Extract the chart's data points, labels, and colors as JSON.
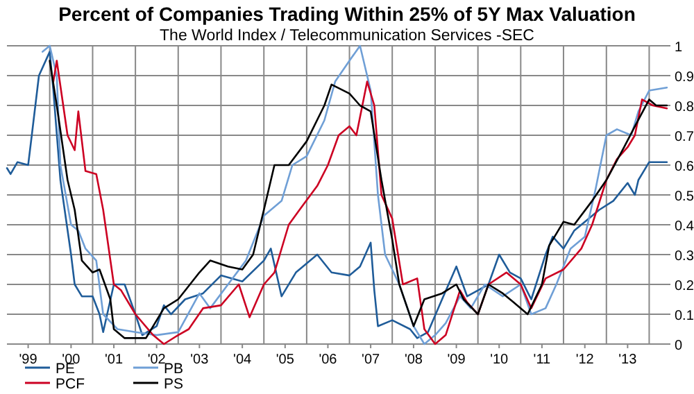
{
  "chart_data": {
    "type": "line",
    "title": "Percent of Companies Trading Within 25%  of 5Y Max Valuation",
    "subtitle": "The World Index / Telecommunication Services -SEC",
    "xlim": [
      "1999-01",
      "2014-07"
    ],
    "xticks": [
      {
        "value": "1999-07",
        "label": "'99"
      },
      {
        "value": "2000-07",
        "label": "'00"
      },
      {
        "value": "2001-07",
        "label": "'01"
      },
      {
        "value": "2002-07",
        "label": "'02"
      },
      {
        "value": "2003-07",
        "label": "'03"
      },
      {
        "value": "2004-07",
        "label": "'04"
      },
      {
        "value": "2005-07",
        "label": "'05"
      },
      {
        "value": "2006-07",
        "label": "'06"
      },
      {
        "value": "2007-07",
        "label": "'07"
      },
      {
        "value": "2008-07",
        "label": "'08"
      },
      {
        "value": "2009-07",
        "label": "'09"
      },
      {
        "value": "2010-07",
        "label": "'10"
      },
      {
        "value": "2011-07",
        "label": "'11"
      },
      {
        "value": "2012-07",
        "label": "'12"
      },
      {
        "value": "2013-07",
        "label": "'13"
      },
      {
        "value": "2000",
        "label": null
      },
      {
        "value": "2001",
        "label": null
      },
      {
        "value": "2002",
        "label": null
      },
      {
        "value": "2003",
        "label": null
      },
      {
        "value": "2004",
        "label": null
      },
      {
        "value": "2005",
        "label": null
      },
      {
        "value": "2006",
        "label": null
      },
      {
        "value": "2007",
        "label": null
      },
      {
        "value": "2008",
        "label": null
      },
      {
        "value": "2009",
        "label": null
      },
      {
        "value": "2010",
        "label": null
      },
      {
        "value": "2011",
        "label": null
      },
      {
        "value": "2012",
        "label": null
      },
      {
        "value": "2013",
        "label": null
      },
      {
        "value": "2014",
        "label": null
      }
    ],
    "ylim": [
      0,
      1
    ],
    "yticks": [
      0,
      0.1,
      0.2,
      0.3,
      0.4,
      0.5,
      0.6,
      0.7,
      0.8,
      0.9,
      1
    ],
    "grid": true,
    "legend": "bottom left",
    "line_style": "solid",
    "marker": "none",
    "series": [
      {
        "name": "PE",
        "color": "#1f5c99",
        "x": [
          "1999-01",
          "1999-02",
          "1999-04",
          "1999-07",
          "1999-08",
          "1999-10",
          "2000-01",
          "2000-02",
          "2000-04",
          "2000-07",
          "2000-08",
          "2000-10",
          "2001-01",
          "2001-03",
          "2001-04",
          "2001-07",
          "2001-10",
          "2002-01",
          "2002-03",
          "2002-07",
          "2002-09",
          "2002-11",
          "2003-03",
          "2003-08",
          "2004-01",
          "2004-07",
          "2005-01",
          "2005-03",
          "2005-06",
          "2005-10",
          "2006-04",
          "2006-08",
          "2007-01",
          "2007-04",
          "2007-07",
          "2007-08",
          "2007-09",
          "2008-01",
          "2008-06",
          "2008-08",
          "2008-11",
          "2009-03",
          "2009-07",
          "2009-10",
          "2010-01",
          "2010-04",
          "2010-07",
          "2010-10",
          "2011-01",
          "2011-04",
          "2011-08",
          "2011-10",
          "2012-01",
          "2012-04",
          "2012-08",
          "2012-11",
          "2013-03",
          "2013-07",
          "2013-09",
          "2013-10",
          "2014-01",
          "2014-06"
        ],
        "values": [
          0.59,
          0.57,
          0.61,
          0.6,
          0.7,
          0.9,
          0.98,
          0.85,
          0.55,
          0.3,
          0.2,
          0.16,
          0.16,
          0.1,
          0.04,
          0.2,
          0.2,
          0.1,
          0.03,
          0.06,
          0.13,
          0.1,
          0.15,
          0.17,
          0.23,
          0.21,
          0.28,
          0.32,
          0.16,
          0.24,
          0.3,
          0.24,
          0.23,
          0.26,
          0.34,
          0.18,
          0.06,
          0.08,
          0.05,
          0.02,
          0.04,
          0.15,
          0.26,
          0.16,
          0.18,
          0.2,
          0.3,
          0.24,
          0.22,
          0.15,
          0.3,
          0.36,
          0.32,
          0.38,
          0.42,
          0.45,
          0.48,
          0.54,
          0.5,
          0.55,
          0.61,
          0.61
        ]
      },
      {
        "name": "PB",
        "color": "#6f9fd6",
        "x": [
          "1999-11",
          "2000-01",
          "2000-03",
          "2000-04",
          "2000-07",
          "2000-09",
          "2000-11",
          "2001-02",
          "2001-04",
          "2001-08",
          "2002-01",
          "2002-07",
          "2003-01",
          "2003-07",
          "2003-10",
          "2004-03",
          "2004-08",
          "2005-01",
          "2005-06",
          "2005-09",
          "2006-01",
          "2006-06",
          "2006-09",
          "2007-01",
          "2007-04",
          "2007-07",
          "2007-09",
          "2007-11",
          "2008-03",
          "2008-07",
          "2008-10",
          "2009-01",
          "2009-04",
          "2009-08",
          "2009-11",
          "2010-03",
          "2010-08",
          "2011-01",
          "2011-04",
          "2011-08",
          "2011-11",
          "2012-03",
          "2012-07",
          "2012-10",
          "2013-01",
          "2013-04",
          "2013-08",
          "2013-10",
          "2014-01",
          "2014-06"
        ],
        "values": [
          0.98,
          1.0,
          0.9,
          0.6,
          0.4,
          0.38,
          0.32,
          0.28,
          0.1,
          0.05,
          0.04,
          0.03,
          0.04,
          0.17,
          0.12,
          0.2,
          0.28,
          0.43,
          0.48,
          0.6,
          0.63,
          0.75,
          0.88,
          0.95,
          1.0,
          0.85,
          0.5,
          0.3,
          0.2,
          0.06,
          0.0,
          0.03,
          0.07,
          0.16,
          0.12,
          0.2,
          0.16,
          0.2,
          0.1,
          0.12,
          0.2,
          0.32,
          0.36,
          0.52,
          0.7,
          0.72,
          0.7,
          0.78,
          0.85,
          0.86
        ]
      },
      {
        "name": "PCF",
        "color": "#cc0022",
        "x": [
          "2000-02",
          "2000-03",
          "2000-06",
          "2000-08",
          "2000-09",
          "2000-11",
          "2001-02",
          "2001-04",
          "2001-07",
          "2001-09",
          "2002-01",
          "2002-06",
          "2002-09",
          "2003-01",
          "2003-04",
          "2003-08",
          "2004-01",
          "2004-06",
          "2004-09",
          "2005-01",
          "2005-04",
          "2005-08",
          "2005-11",
          "2006-04",
          "2006-07",
          "2006-10",
          "2007-01",
          "2007-03",
          "2007-06",
          "2007-08",
          "2007-10",
          "2008-01",
          "2008-04",
          "2008-08",
          "2008-10",
          "2009-01",
          "2009-04",
          "2009-08",
          "2009-10",
          "2010-01",
          "2010-04",
          "2010-09",
          "2011-01",
          "2011-04",
          "2011-08",
          "2012-01",
          "2012-06",
          "2012-09",
          "2013-01",
          "2013-04",
          "2013-07",
          "2013-09",
          "2013-11",
          "2014-02",
          "2014-06"
        ],
        "values": [
          0.88,
          0.95,
          0.7,
          0.65,
          0.78,
          0.58,
          0.57,
          0.45,
          0.2,
          0.18,
          0.1,
          0.03,
          0.0,
          0.03,
          0.05,
          0.12,
          0.13,
          0.2,
          0.09,
          0.2,
          0.24,
          0.4,
          0.45,
          0.53,
          0.6,
          0.7,
          0.73,
          0.7,
          0.88,
          0.8,
          0.5,
          0.42,
          0.2,
          0.22,
          0.05,
          0.0,
          0.03,
          0.18,
          0.14,
          0.1,
          0.2,
          0.24,
          0.2,
          0.12,
          0.22,
          0.25,
          0.32,
          0.4,
          0.55,
          0.62,
          0.66,
          0.7,
          0.82,
          0.8,
          0.79
        ]
      },
      {
        "name": "PS",
        "color": "#000000",
        "x": [
          "2000-01",
          "2000-03",
          "2000-06",
          "2000-08",
          "2000-10",
          "2001-01",
          "2001-03",
          "2001-06",
          "2001-07",
          "2001-10",
          "2002-04",
          "2002-09",
          "2003-01",
          "2003-07",
          "2003-10",
          "2004-03",
          "2004-07",
          "2004-10",
          "2005-01",
          "2005-04",
          "2005-08",
          "2006-01",
          "2006-06",
          "2006-08",
          "2007-01",
          "2007-04",
          "2007-07",
          "2007-10",
          "2008-01",
          "2008-03",
          "2008-07",
          "2008-10",
          "2009-03",
          "2009-07",
          "2009-09",
          "2010-01",
          "2010-04",
          "2010-08",
          "2010-11",
          "2011-03",
          "2011-07",
          "2011-09",
          "2012-01",
          "2012-04",
          "2012-09",
          "2013-01",
          "2013-06",
          "2013-09",
          "2014-01",
          "2014-03",
          "2014-06"
        ],
        "values": [
          0.95,
          0.8,
          0.55,
          0.45,
          0.28,
          0.24,
          0.25,
          0.15,
          0.05,
          0.02,
          0.02,
          0.12,
          0.15,
          0.24,
          0.28,
          0.26,
          0.25,
          0.3,
          0.45,
          0.6,
          0.6,
          0.68,
          0.8,
          0.87,
          0.84,
          0.8,
          0.78,
          0.55,
          0.35,
          0.2,
          0.06,
          0.15,
          0.17,
          0.2,
          0.15,
          0.1,
          0.2,
          0.17,
          0.14,
          0.1,
          0.2,
          0.33,
          0.41,
          0.4,
          0.48,
          0.55,
          0.66,
          0.73,
          0.82,
          0.8,
          0.8
        ]
      }
    ]
  }
}
